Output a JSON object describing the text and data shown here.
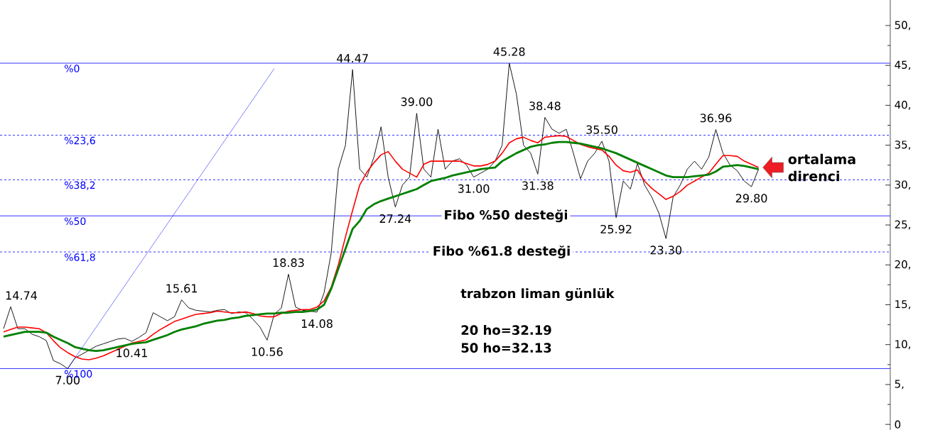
{
  "chart_data": {
    "type": "line",
    "categories": [
      null,
      null,
      null,
      null,
      null,
      null,
      null,
      null,
      null,
      null,
      null,
      null,
      null,
      null,
      null,
      null,
      null,
      null,
      null,
      null,
      null,
      null,
      null,
      null,
      null,
      null,
      null,
      null,
      null,
      null,
      null,
      null,
      null,
      null,
      null,
      null,
      null,
      null,
      null,
      null,
      null,
      null,
      null,
      null,
      null,
      null,
      null,
      null,
      null,
      null,
      null,
      null,
      null,
      null,
      null,
      null,
      null,
      null,
      null,
      null,
      null,
      null,
      null,
      null,
      null,
      null,
      null,
      null,
      null,
      null,
      null,
      null,
      null,
      null,
      null,
      null,
      null,
      null,
      null,
      null,
      null,
      null,
      null,
      null,
      null,
      null,
      null,
      null,
      null,
      null,
      null,
      null,
      null,
      null,
      null,
      null,
      null,
      null,
      null,
      null,
      null,
      null,
      null,
      null,
      null,
      null,
      null,
      null,
      null,
      null,
      null,
      null,
      null,
      null,
      null,
      null,
      null,
      null,
      null,
      null,
      null,
      null,
      null,
      null,
      null
    ],
    "ylim": [
      -0.7,
      53.2
    ],
    "yticks": [
      {
        "value": 0,
        "label": "0"
      },
      {
        "value": 5,
        "label": "5,"
      },
      {
        "value": 10,
        "label": "10,"
      },
      {
        "value": 15,
        "label": "15,"
      },
      {
        "value": 20,
        "label": "20,"
      },
      {
        "value": 25,
        "label": "25,"
      },
      {
        "value": 30,
        "label": "30,"
      },
      {
        "value": 35,
        "label": "35,"
      },
      {
        "value": 40,
        "label": "40,"
      },
      {
        "value": 45,
        "label": "45,"
      },
      {
        "value": 50,
        "label": "50,"
      }
    ],
    "tick_labels": "y",
    "series": [
      {
        "color": "#000000",
        "values": [
          12.0,
          14.74,
          12.0,
          12.0,
          11.3,
          11.0,
          10.5,
          8.0,
          7.6,
          7.0,
          8.3,
          8.8,
          9.3,
          9.8,
          10.1,
          10.4,
          10.7,
          10.8,
          10.41,
          10.9,
          11.5,
          14.0,
          13.5,
          13.0,
          13.5,
          15.61,
          14.6,
          14.3,
          14.2,
          14.1,
          14.3,
          14.4,
          13.9,
          14.1,
          14.0,
          13.2,
          12.2,
          10.56,
          13.8,
          14.6,
          18.83,
          14.7,
          14.3,
          14.2,
          14.08,
          16.5,
          21.5,
          32.0,
          35.0,
          44.47,
          32.0,
          31.0,
          33.5,
          37.3,
          31.0,
          27.24,
          30.0,
          31.0,
          39.0,
          32.0,
          31.0,
          37.0,
          32.0,
          33.0,
          33.3,
          32.5,
          31.0,
          31.5,
          32.0,
          33.0,
          35.0,
          45.28,
          41.4,
          35.0,
          34.0,
          31.38,
          38.48,
          37.0,
          36.5,
          37.0,
          34.0,
          30.8,
          33.0,
          34.0,
          35.5,
          33.0,
          25.92,
          30.5,
          29.5,
          32.7,
          30.0,
          28.5,
          26.5,
          23.3,
          28.5,
          30.0,
          32.0,
          33.0,
          32.0,
          33.5,
          36.96,
          34.0,
          32.5,
          31.8,
          30.5,
          29.8,
          32.0,
          null,
          null,
          null,
          null,
          null,
          null,
          null,
          null,
          null,
          null,
          null,
          null,
          null,
          null,
          null,
          null,
          null,
          null
        ],
        "value_labels": [
          null,
          "14.74",
          null,
          null,
          null,
          null,
          null,
          null,
          null,
          "7.00",
          null,
          null,
          null,
          null,
          null,
          null,
          null,
          null,
          "10.41",
          null,
          null,
          null,
          null,
          null,
          null,
          "15.61",
          null,
          null,
          null,
          null,
          null,
          null,
          null,
          null,
          null,
          null,
          null,
          "10.56",
          null,
          null,
          "18.83",
          null,
          null,
          null,
          "14.08",
          null,
          null,
          null,
          null,
          "44.47",
          null,
          null,
          null,
          null,
          null,
          "27.24",
          null,
          null,
          "39.00",
          null,
          null,
          null,
          null,
          null,
          null,
          null,
          "31.00",
          null,
          null,
          null,
          null,
          "45.28",
          null,
          null,
          null,
          "31.38",
          "38.48",
          null,
          null,
          null,
          null,
          null,
          null,
          null,
          "35.50",
          null,
          "25.92",
          null,
          null,
          null,
          null,
          null,
          null,
          "23.30",
          null,
          null,
          null,
          null,
          null,
          null,
          "36.96",
          null,
          null,
          null,
          null,
          "29.80",
          null,
          null,
          null,
          null,
          null,
          null,
          null,
          null,
          null,
          null,
          null,
          null,
          null,
          null,
          null,
          null,
          null,
          null,
          null
        ]
      },
      {
        "color": "#ff0000",
        "values": [
          11.6,
          11.9,
          12.2,
          12.2,
          12.1,
          12.0,
          11.5,
          10.5,
          9.6,
          9.0,
          8.5,
          8.2,
          8.1,
          8.3,
          8.6,
          9.0,
          9.4,
          9.8,
          10.2,
          10.4,
          10.6,
          11.3,
          11.9,
          12.4,
          12.9,
          13.2,
          13.5,
          13.8,
          13.9,
          14.0,
          14.2,
          14.1,
          14.0,
          14.0,
          14.1,
          13.9,
          13.6,
          13.5,
          13.5,
          13.9,
          14.2,
          14.3,
          14.4,
          14.4,
          14.7,
          15.5,
          17.2,
          20.0,
          23.5,
          26.8,
          30.0,
          31.6,
          32.8,
          33.8,
          34.2,
          33.0,
          32.0,
          31.5,
          31.0,
          32.6,
          33.0,
          33.0,
          33.0,
          33.0,
          33.0,
          32.7,
          32.4,
          32.4,
          32.6,
          33.0,
          34.0,
          35.3,
          35.8,
          36.0,
          35.6,
          35.3,
          36.0,
          36.1,
          36.2,
          36.1,
          35.6,
          35.1,
          34.8,
          34.6,
          34.4,
          33.6,
          32.5,
          31.8,
          31.6,
          31.9,
          30.5,
          29.6,
          28.9,
          28.2,
          28.6,
          29.2,
          30.0,
          30.5,
          31.0,
          31.5,
          32.6,
          33.7,
          33.7,
          33.6,
          33.0,
          32.6,
          32.2,
          null,
          null,
          null,
          null,
          null,
          null,
          null,
          null,
          null,
          null,
          null,
          null,
          null,
          null,
          null,
          null,
          null,
          null
        ]
      },
      {
        "color": "#008000",
        "values": [
          11.0,
          11.2,
          11.4,
          11.6,
          11.6,
          11.6,
          11.5,
          11.0,
          10.6,
          10.2,
          9.7,
          9.5,
          9.3,
          9.2,
          9.3,
          9.5,
          9.7,
          9.9,
          10.1,
          10.2,
          10.3,
          10.6,
          10.9,
          11.2,
          11.6,
          11.9,
          12.1,
          12.3,
          12.6,
          12.8,
          13.0,
          13.1,
          13.3,
          13.4,
          13.6,
          13.7,
          13.8,
          13.9,
          13.9,
          14.0,
          14.0,
          14.1,
          14.1,
          14.2,
          14.4,
          15.0,
          17.0,
          19.5,
          22.0,
          24.5,
          25.5,
          27.0,
          27.6,
          28.0,
          28.3,
          28.6,
          28.9,
          29.2,
          29.5,
          30.0,
          30.5,
          30.7,
          30.9,
          31.2,
          31.4,
          31.6,
          31.8,
          32.0,
          32.1,
          32.2,
          33.0,
          33.5,
          34.0,
          34.4,
          34.8,
          35.0,
          35.1,
          35.3,
          35.4,
          35.4,
          35.3,
          35.2,
          35.0,
          34.8,
          34.6,
          34.3,
          34.0,
          33.6,
          33.2,
          32.8,
          32.4,
          32.0,
          31.6,
          31.2,
          31.0,
          31.0,
          31.0,
          31.1,
          31.2,
          31.3,
          31.7,
          32.3,
          32.4,
          32.5,
          32.4,
          32.2,
          32.0,
          null,
          null,
          null,
          null,
          null,
          null,
          null,
          null,
          null,
          null,
          null,
          null,
          null,
          null,
          null,
          null,
          null,
          null
        ]
      },
      {
        "color": "#0000ff",
        "values": [
          null,
          null,
          null,
          null,
          null,
          null,
          null,
          null,
          null,
          7.0,
          null,
          null,
          null,
          null,
          null,
          null,
          null,
          null,
          null,
          null,
          null,
          null,
          null,
          null,
          null,
          null,
          null,
          null,
          null,
          null,
          null,
          null,
          null,
          null,
          null,
          null,
          null,
          null,
          44.6,
          null,
          null,
          null,
          null,
          null,
          null,
          null,
          null,
          null,
          null,
          null,
          null,
          null,
          null,
          null,
          null,
          null,
          null,
          null,
          null,
          null,
          null,
          null,
          null,
          null,
          null,
          null,
          null,
          null,
          null,
          null,
          null,
          null,
          null,
          null,
          null,
          null,
          null,
          null,
          null,
          null,
          null,
          null,
          null,
          null,
          null,
          null,
          null,
          null,
          null,
          null,
          null,
          null,
          null,
          null,
          null,
          null,
          null,
          null,
          null,
          null,
          null,
          null,
          null,
          null,
          null,
          null,
          null,
          null,
          null,
          null,
          null,
          null,
          null,
          null,
          null,
          null,
          null,
          null,
          null,
          null,
          null,
          null,
          null,
          null,
          null
        ]
      }
    ],
    "ref_lines": [
      {
        "axis": "y",
        "value": 45.28,
        "color": "#0000ff",
        "line_style": "solid"
      },
      {
        "axis": "y",
        "value": 36.25,
        "color": "#0000ff",
        "line_style": "dashed"
      },
      {
        "axis": "y",
        "value": 30.66,
        "color": "#0000ff",
        "line_style": "dashed"
      },
      {
        "axis": "y",
        "value": 26.14,
        "color": "#0000ff",
        "line_style": "solid"
      },
      {
        "axis": "y",
        "value": 21.62,
        "color": "#0000ff",
        "line_style": "dashed"
      },
      {
        "axis": "y",
        "value": 7.0,
        "color": "#0000ff",
        "line_style": "solid"
      }
    ],
    "annotations": [
      "Fibo %50 desteği",
      "Fibo %61.8 desteği",
      "ortalama direnci",
      "trabzon liman günlük",
      "20 ho=32.19",
      "50 ho=32.13",
      "%0",
      "%23,6",
      "%38,2",
      "%50",
      "%61,8",
      "%100"
    ]
  }
}
